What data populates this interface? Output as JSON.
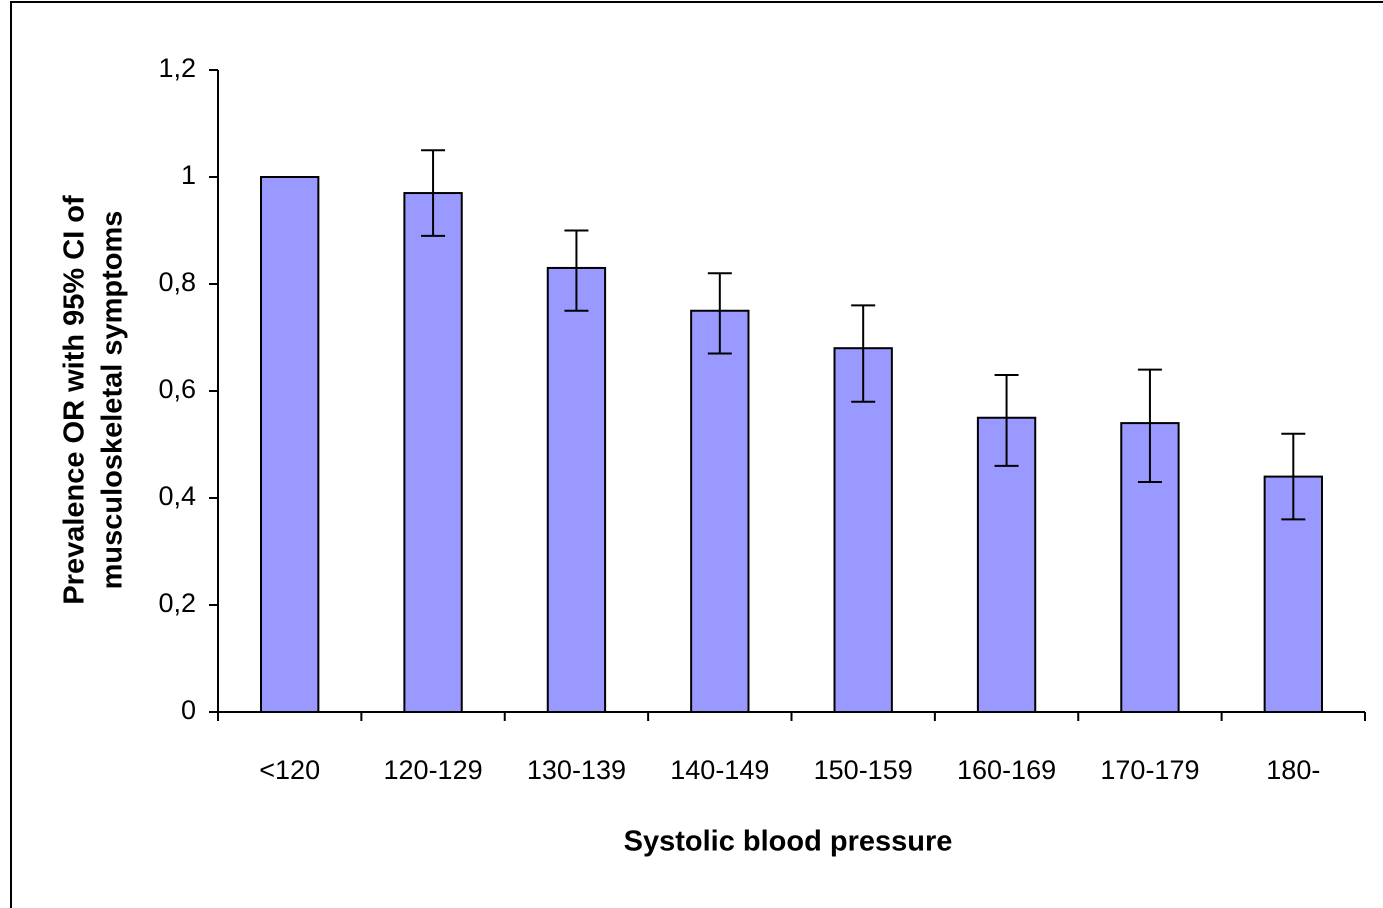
{
  "chart_data": {
    "type": "bar",
    "xlabel": "Systolic blood pressure",
    "ylabel": [
      "Prevalence OR with 95% CI of",
      "musculoskeletal symptoms"
    ],
    "categories": [
      "<120",
      "120-129",
      "130-139",
      "140-149",
      "150-159",
      "160-169",
      "170-179",
      "180-"
    ],
    "values": [
      1.0,
      0.97,
      0.83,
      0.75,
      0.68,
      0.55,
      0.54,
      0.44
    ],
    "ci_low": [
      null,
      0.89,
      0.75,
      0.67,
      0.58,
      0.46,
      0.43,
      0.36
    ],
    "ci_high": [
      null,
      1.05,
      0.9,
      0.82,
      0.76,
      0.63,
      0.64,
      0.52
    ],
    "color": "#9999ff",
    "ylim": [
      0,
      1.2
    ],
    "yticks": [
      0,
      {
        "value": 0.2,
        "label": "0,2"
      },
      {
        "value": 0.4,
        "label": "0,4"
      },
      {
        "value": 0.6,
        "label": "0,6"
      },
      {
        "value": 0.8,
        "label": "0,8"
      },
      1,
      {
        "value": 1.2,
        "label": "1,2"
      }
    ],
    "grid": false
  }
}
